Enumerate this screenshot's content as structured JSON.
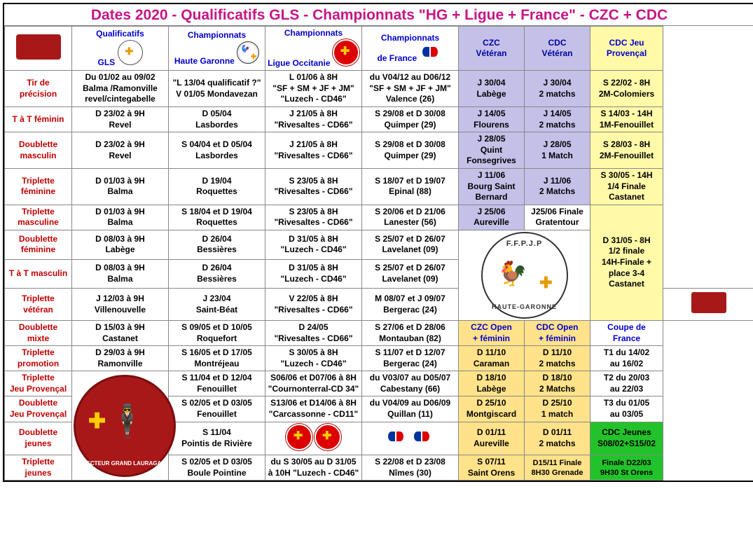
{
  "title": "Dates 2020 - Qualificatifs GLS - Championnats \"HG + Ligue + France\" - CZC + CDC",
  "headers": {
    "col1": "Qualificatifs\nGLS",
    "col2": "Championnats\nHaute Garonne",
    "col3": "Championnats\nLigue Occitanie",
    "col4": "Championnats\nde France",
    "czc": "CZC\nVétéran",
    "cdc": "CDC\nVétéran",
    "cdcjp": "CDC Jeu\nProvençal"
  },
  "rows": [
    {
      "label": "Tir de\nprécision",
      "c1": "Du 01/02 au 09/02\nBalma /Ramonville\nrevel/cintegabelle",
      "c2": "\"L 13/04 qualificatif ?\"\nV 01/05 Mondavezan",
      "c3": "L 01/06 à 8H\n\"SF + SM + JF + JM\"\n\"Luzech - CD46\"",
      "c4": "du V04/12 au D06/12\n\"SF + SM + JF + JM\"\nValence (26)",
      "czc": "J 30/04\nLabège",
      "cdc": "J 30/04\n2 matchs",
      "cdcjp": "S 22/02 - 8H\n2M-Colomiers"
    },
    {
      "label": "T à T féminin",
      "c1": "D 23/02 à 9H\nRevel",
      "c2": "D 05/04\nLasbordes",
      "c3": "J 21/05 à 8H\n\"Rivesaltes - CD66\"",
      "c4": "S 29/08 et D 30/08\nQuimper (29)",
      "czc": "J 14/05\nFlourens",
      "cdc": "J 14/05\n2 matchs",
      "cdcjp": "S 14/03 - 14H\n1M-Fenouillet"
    },
    {
      "label": "Doublette\nmasculin",
      "c1": "D 23/02 à 9H\nRevel",
      "c2": "S 04/04 et D 05/04\nLasbordes",
      "c3": "J 21/05 à 8H\n\"Rivesaltes - CD66\"",
      "c4": "S 29/08 et D 30/08\nQuimper (29)",
      "czc": "J 28/05\nQuint\nFonsegrives",
      "cdc": "J 28/05\n1 Match",
      "cdcjp": "S 28/03 - 8H\n2M-Fenouillet"
    },
    {
      "label": "Triplette\nféminine",
      "c1": "D  01/03 à 9H\nBalma",
      "c2": "D 19/04\nRoquettes",
      "c3": "S 23/05 à 8H\n\"Rivesaltes - CD66\"",
      "c4": "S 18/07 et D 19/07\nEpinal (88)",
      "czc": "J 11/06\nBourg Saint\nBernard",
      "cdc": "J 11/06\n2 Matchs",
      "cdcjp": "S 30/05 - 14H\n1/4 Finale\nCastanet"
    },
    {
      "label": "Triplette\nmasculine",
      "c1": "D  01/03 à 9H\nBalma",
      "c2": "S 18/04 et D 19/04\nRoquettes",
      "c3": "S 23/05 à 8H\n\"Rivesaltes - CD66\"",
      "c4": "S 20/06 et D 21/06\nLanester (56)",
      "czc": "J 25/06\nAureville",
      "cdc": "J25/06 Finale\nGratentour",
      "cdcjp": "D 31/05 - 8H\n1/2 finale\n14H-Finale +\nplace 3-4\nCastanet"
    },
    {
      "label": "Doublette\nféminine",
      "c1": "D  08/03 à 9H\nLabège",
      "c2": "D 26/04\nBessières",
      "c3": "D 31/05 à 8H\n\"Luzech - CD46\"",
      "c4": "S 25/07 et D 26/07\nLavelanet (09)"
    },
    {
      "label": "T à T masculin",
      "c1": "D  08/03 à 9H\nBalma",
      "c2": "D 26/04\nBessières",
      "c3": "D 31/05 à 8H\n\"Luzech - CD46\"",
      "c4": "S 25/07 et D 26/07\nLavelanet (09)"
    },
    {
      "label": "Triplette\nvétéran",
      "c1": "J  12/03 à 9H\nVillenouvelle",
      "c2": "J 23/04\nSaint-Béat",
      "c3": "V 22/05 à 8H\n\"Rivesaltes - CD66\"",
      "c4": "M 08/07 et J 09/07\nBergerac (24)"
    }
  ],
  "openHeaders": {
    "czc": "CZC Open\n+ féminin",
    "cdc": "CDC Open\n+ féminin",
    "coupe": "Coupe de\nFrance"
  },
  "rows2": [
    {
      "label": "Doublette\nmixte",
      "c1": "D 15/03 à 9H\nCastanet",
      "c2": "S 09/05 et D 10/05\nRoquefort",
      "c3": "D 24/05\n\"Rivesaltes - CD66\"",
      "c4": "S 27/06 et D 28/06\nMontauban (82)"
    },
    {
      "label": "Triplette\npromotion",
      "c1": "D 29/03 à 9H\nRamonville",
      "c2": "S 16/05 et D 17/05\nMontréjeau",
      "c3": "S 30/05 à 8H\n\"Luzech - CD46\"",
      "c4": "S 11/07 et D 12/07\nBergerac (24)",
      "czc": "D 11/10\nCaraman",
      "cdc": "D 11/10\n2 matchs",
      "coupe": "T1 du 14/02\nau 16/02"
    },
    {
      "label": "Triplette\nJeu Provençal",
      "c2": "S 11/04 et D 12/04\nFenouillet",
      "c3": "S06/06 et D07/06 à 8H\n\"Cournonterral-CD 34\"",
      "c4": "du V03/07 au D05/07\nCabestany (66)",
      "czc": "D 18/10\nLabège",
      "cdc": "D 18/10\n2 Matchs",
      "coupe": "T2 du 20/03\nau 22/03"
    },
    {
      "label": "Doublette\nJeu Provençal",
      "c2": "S 02/05 et D 03/05\nFenouillet",
      "c3": "S13/06 et D14/06 à 8H\n\"Carcassonne - CD11\"",
      "c4": "du V04/09 au D06/09\nQuillan (11)",
      "czc": "D 25/10\nMontgiscard",
      "cdc": "D 25/10\n1 match",
      "coupe": "T3 du 01/05\nau 03/05"
    },
    {
      "label": "Doublette\njeunes",
      "c2": "S 11/04\nPointis de Rivière",
      "czc": "D 01/11\nAureville",
      "cdc": "D 01/11\n2 matchs",
      "coupe": "CDC Jeunes\nS08/02+S15/02"
    },
    {
      "label": "Triplette\njeunes",
      "c2": "S 02/05 et D 03/05\nBoule Pointine",
      "c3": "du S 30/05 au D 31/05\nà 10H \"Luzech - CD46\"",
      "c4": "S 22/08 et D 23/08\nNîmes (30)",
      "czc": "S 07/11\nSaint Orens",
      "cdc": "D15/11 Finale\n8H30 Grenade",
      "coupe": "Finale D22/03\n9H30 St Orens"
    }
  ],
  "colors": {
    "title": "#c71585",
    "blue": "#0000cd",
    "red": "#c00000",
    "czc_bg": "#c4c0e8",
    "cdcjp_bg": "#fff9a8",
    "open_bg": "#ffe28a",
    "green_bg": "#22c32a"
  }
}
